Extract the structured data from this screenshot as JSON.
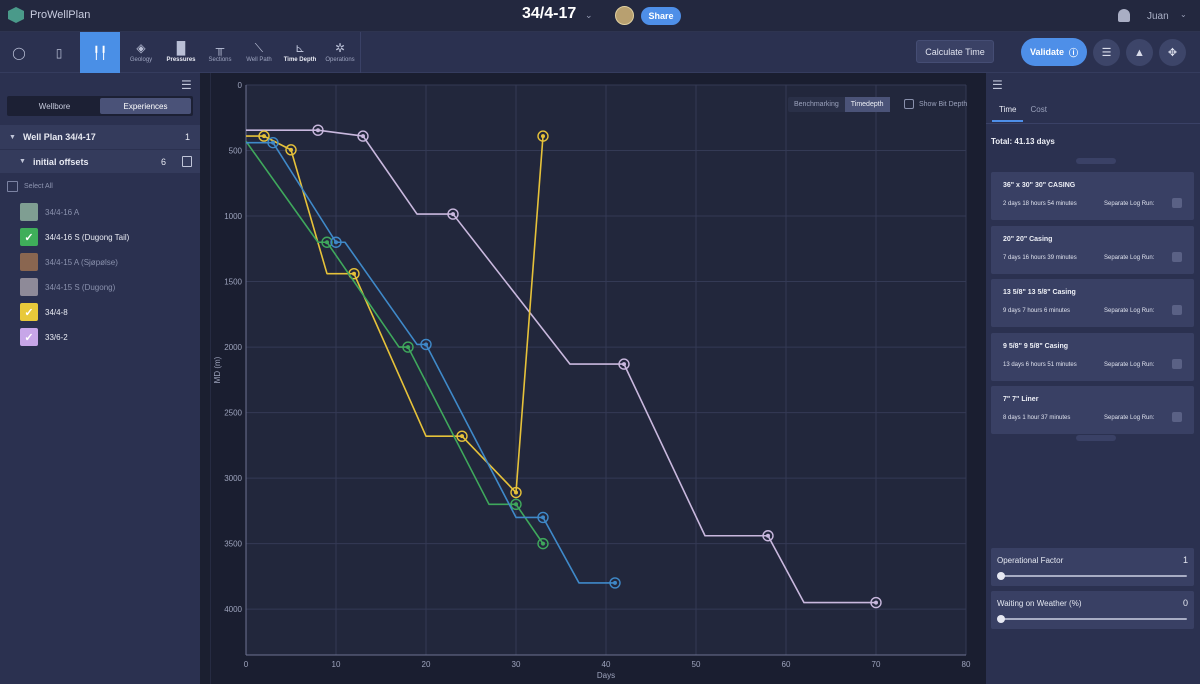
{
  "app": {
    "name": "ProWellPlan",
    "well_title": "34/4-17",
    "share_label": "Share",
    "username": "Juan"
  },
  "toolbar": {
    "items": [
      {
        "label": "Geology",
        "active": false
      },
      {
        "label": "Pressures",
        "active": false
      },
      {
        "label": "Sections",
        "active": false
      },
      {
        "label": "Well Path",
        "active": false
      },
      {
        "label": "Time Depth",
        "active": true
      },
      {
        "label": "Operations",
        "active": false
      }
    ],
    "calculate_label": "Calculate Time",
    "validate_label": "Validate"
  },
  "left_panel": {
    "tabs": [
      "Wellbore",
      "Experiences"
    ],
    "active_tab": "Experiences",
    "well_plan": {
      "label": "Well Plan 34/4-17",
      "count": "1"
    },
    "offsets_group": {
      "label": "initial offsets",
      "count": "6"
    },
    "select_all_label": "Select All",
    "wells": [
      {
        "label": "34/4-16 A",
        "color": "#7f9e92",
        "checked": false
      },
      {
        "label": "34/4-16 S (Dugong Tail)",
        "color": "#3fae5a",
        "checked": true
      },
      {
        "label": "34/4-15 A (Sjøpølse)",
        "color": "#8a6650",
        "checked": false
      },
      {
        "label": "34/4-15 S (Dugong)",
        "color": "#8e8a98",
        "checked": false
      },
      {
        "label": "34/4-8",
        "color": "#e8c93a",
        "checked": true
      },
      {
        "label": "33/6-2",
        "color": "#c7a6e8",
        "checked": true
      }
    ]
  },
  "chart_controls": {
    "toggle": [
      "Benchmarking",
      "Timedepth"
    ],
    "active_toggle": "Timedepth",
    "bit_depth_label": "Show Bit Depth"
  },
  "chart_data": {
    "type": "line",
    "xlabel": "Days",
    "ylabel": "MD (m)",
    "xlim": [
      0,
      80
    ],
    "ylim": [
      0,
      4350
    ],
    "y_inverted": true,
    "x_ticks": [
      0,
      10,
      20,
      30,
      40,
      50,
      60,
      70,
      80
    ],
    "y_ticks": [
      0,
      500,
      1000,
      1500,
      2000,
      2500,
      3000,
      3500,
      4000
    ],
    "grid": true,
    "series": [
      {
        "color": "#c9b8de",
        "points": [
          [
            0,
            345
          ],
          [
            8,
            345
          ],
          [
            13,
            390
          ],
          [
            19,
            985
          ],
          [
            23,
            985
          ],
          [
            36,
            2130
          ],
          [
            42,
            2130
          ],
          [
            51,
            3440
          ],
          [
            58,
            3440
          ],
          [
            62,
            3950
          ],
          [
            70,
            3950
          ]
        ],
        "markers": [
          [
            8,
            345
          ],
          [
            13,
            390
          ],
          [
            23,
            985
          ],
          [
            42,
            2130
          ],
          [
            58,
            3440
          ],
          [
            70,
            3950
          ]
        ]
      },
      {
        "color": "#e6c23a",
        "points": [
          [
            0,
            390
          ],
          [
            2,
            390
          ],
          [
            5,
            495
          ],
          [
            9,
            1440
          ],
          [
            12,
            1440
          ],
          [
            20,
            2680
          ],
          [
            24,
            2680
          ],
          [
            30,
            3110
          ],
          [
            30,
            3110
          ],
          [
            33,
            390
          ]
        ],
        "markers": [
          [
            2,
            390
          ],
          [
            5,
            495
          ],
          [
            12,
            1440
          ],
          [
            24,
            2680
          ],
          [
            30,
            3110
          ],
          [
            33,
            390
          ]
        ]
      },
      {
        "color": "#3fa85c",
        "points": [
          [
            0,
            430
          ],
          [
            8,
            1200
          ],
          [
            9,
            1200
          ],
          [
            17,
            2000
          ],
          [
            18,
            2000
          ],
          [
            27,
            3200
          ],
          [
            30,
            3200
          ],
          [
            33,
            3500
          ]
        ],
        "markers": [
          [
            9,
            1200
          ],
          [
            18,
            2000
          ],
          [
            30,
            3200
          ],
          [
            33,
            3500
          ]
        ]
      },
      {
        "color": "#3f89c9",
        "points": [
          [
            0,
            440
          ],
          [
            3,
            440
          ],
          [
            10,
            1200
          ],
          [
            11,
            1200
          ],
          [
            19,
            1980
          ],
          [
            20,
            1980
          ],
          [
            30,
            3300
          ],
          [
            33,
            3300
          ],
          [
            37,
            3800
          ],
          [
            41,
            3800
          ]
        ],
        "markers": [
          [
            3,
            440
          ],
          [
            10,
            1200
          ],
          [
            20,
            1980
          ],
          [
            33,
            3300
          ],
          [
            41,
            3800
          ]
        ]
      }
    ]
  },
  "right_panel": {
    "tabs": [
      "Time",
      "Cost"
    ],
    "active_tab": "Time",
    "total_label": "Total: 41.13 days",
    "separate_log_run_label": "Separate Log Run:",
    "casings": [
      {
        "name": "36\" x 30\" 30\" CASING",
        "duration": "2 days 18 hours 54 minutes"
      },
      {
        "name": "20\" 20\" Casing",
        "duration": "7 days 16 hours 39 minutes"
      },
      {
        "name": "13 5/8\" 13 5/8\" Casing",
        "duration": "9 days 7 hours 6 minutes"
      },
      {
        "name": "9 5/8\" 9 5/8\" Casing",
        "duration": "13 days 6 hours 51 minutes"
      },
      {
        "name": "7\" 7\" Liner",
        "duration": "8 days 1 hour 37 minutes"
      }
    ],
    "operational_factor": {
      "label": "Operational Factor",
      "value": "1",
      "fraction": 0.0
    },
    "waiting_on_weather": {
      "label": "Waiting on Weather (%)",
      "value": "0",
      "fraction": 0.0
    }
  }
}
